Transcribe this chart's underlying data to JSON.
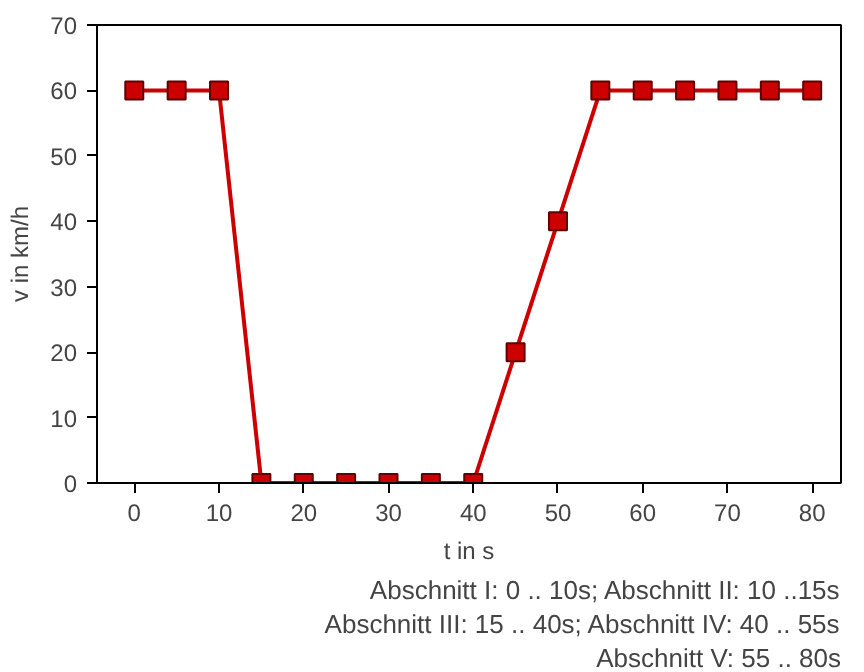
{
  "chart_data": {
    "type": "line",
    "xlabel": "t in s",
    "ylabel": "v in km/h",
    "x": [
      0,
      5,
      10,
      15,
      20,
      25,
      30,
      35,
      40,
      45,
      50,
      55,
      60,
      65,
      70,
      75,
      80
    ],
    "series": [
      {
        "color": "#cc0000",
        "values": [
          60,
          60,
          60,
          0,
          0,
          0,
          0,
          0,
          0,
          20,
          40,
          60,
          60,
          60,
          60,
          60,
          60
        ]
      }
    ],
    "xlim": [
      -4.4,
      83.4
    ],
    "xticks": [
      0,
      10,
      20,
      30,
      40,
      50,
      60,
      70,
      80
    ],
    "ylim": [
      0,
      70
    ],
    "yticks": [
      0,
      10,
      20,
      30,
      40,
      50,
      60,
      70
    ],
    "grid": false,
    "marker": "square",
    "line_style": "solid",
    "annotations": [
      "Abschnitt I: 0 .. 10s; Abschnitt II: 10 ..15s",
      "Abschnitt III: 15 .. 40s; Abschnitt IV: 40 .. 55s",
      "Abschnitt V: 55 .. 80s"
    ]
  }
}
